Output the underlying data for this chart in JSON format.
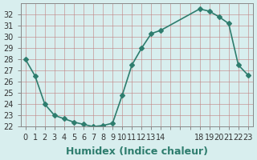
{
  "x": [
    0,
    1,
    2,
    3,
    4,
    5,
    6,
    7,
    8,
    9,
    10,
    11,
    12,
    13,
    14,
    18,
    19,
    20,
    21,
    22,
    23
  ],
  "y": [
    28.0,
    26.5,
    24.0,
    23.0,
    22.7,
    22.4,
    22.2,
    22.0,
    22.1,
    22.3,
    24.8,
    27.5,
    29.0,
    30.3,
    30.6,
    32.5,
    32.3,
    31.8,
    31.2,
    27.5,
    26.6
  ],
  "line_color": "#2e7d6e",
  "marker": "D",
  "marker_size": 3,
  "bg_color": "#d8eeee",
  "xlabel": "Humidex (Indice chaleur)",
  "xlim": [
    -0.5,
    23.5
  ],
  "ylim": [
    22,
    33
  ],
  "yticks": [
    22,
    23,
    24,
    25,
    26,
    27,
    28,
    29,
    30,
    31,
    32
  ],
  "xtick_labels": [
    "0",
    "1",
    "2",
    "3",
    "4",
    "5",
    "6",
    "7",
    "8",
    "9",
    "10",
    "11",
    "12",
    "13",
    "14",
    "",
    "",
    "",
    "18",
    "19",
    "20",
    "21",
    "22",
    "23"
  ],
  "xtick_positions": [
    0,
    1,
    2,
    3,
    4,
    5,
    6,
    7,
    8,
    9,
    10,
    11,
    12,
    13,
    14,
    15,
    16,
    17,
    18,
    19,
    20,
    21,
    22,
    23
  ],
  "xlabel_fontsize": 9,
  "tick_fontsize": 7
}
